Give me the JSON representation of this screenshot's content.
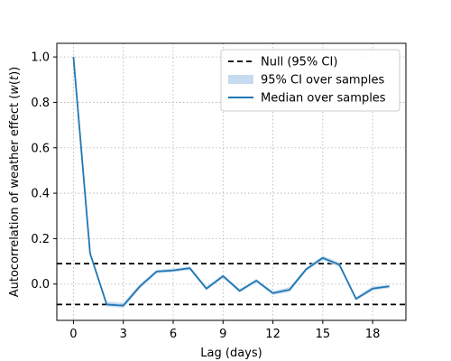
{
  "chart_data": {
    "type": "line",
    "xlabel": "Lag (days)",
    "ylabel": "Autocorrelation of weather effect (w(t))",
    "ylabel_parts": {
      "pre": "Autocorrelation of weather effect (",
      "var": "w",
      "paren_open": "(",
      "arg": "t",
      "paren_close": "))"
    },
    "xlim": [
      -1,
      20
    ],
    "ylim": [
      -0.16,
      1.06
    ],
    "grid": true,
    "legend_position": "top-right",
    "x_ticks": [
      0,
      3,
      6,
      9,
      12,
      15,
      18
    ],
    "y_ticks": [
      0.0,
      0.2,
      0.4,
      0.6,
      0.8,
      1.0
    ],
    "y_tick_labels": [
      "0.0",
      "0.2",
      "0.4",
      "0.6",
      "0.8",
      "1.0"
    ],
    "null_ci": [
      -0.09,
      0.09
    ],
    "x": [
      0,
      1,
      2,
      3,
      4,
      5,
      6,
      7,
      8,
      9,
      10,
      11,
      12,
      13,
      14,
      15,
      16,
      17,
      18,
      19
    ],
    "series": [
      {
        "name": "Median over samples",
        "values": [
          1.0,
          0.135,
          -0.09,
          -0.095,
          -0.01,
          0.055,
          0.06,
          0.07,
          -0.02,
          0.035,
          -0.03,
          0.015,
          -0.04,
          -0.025,
          0.065,
          0.115,
          0.085,
          -0.065,
          -0.02,
          -0.01
        ]
      }
    ],
    "ci_band": {
      "name": "95% CI over samples",
      "lower": [
        0.99,
        0.125,
        -0.1,
        -0.105,
        -0.02,
        0.047,
        0.052,
        0.062,
        -0.028,
        0.027,
        -0.038,
        0.007,
        -0.048,
        -0.035,
        0.057,
        0.105,
        0.075,
        -0.073,
        -0.03,
        -0.018
      ],
      "upper": [
        1.0,
        0.145,
        -0.077,
        -0.082,
        0.0,
        0.063,
        0.068,
        0.078,
        -0.012,
        0.043,
        -0.022,
        0.023,
        -0.032,
        -0.013,
        0.073,
        0.125,
        0.095,
        -0.057,
        -0.01,
        -0.002
      ]
    },
    "legend": [
      {
        "label": "Null (95% CI)",
        "style": "dashed"
      },
      {
        "label": "95% CI over samples",
        "style": "band"
      },
      {
        "label": "Median over samples",
        "style": "line"
      }
    ],
    "colors": {
      "line": "#1f77b4",
      "band": "#c6dbef",
      "null": "#000000",
      "grid": "#b0b0b0"
    }
  }
}
